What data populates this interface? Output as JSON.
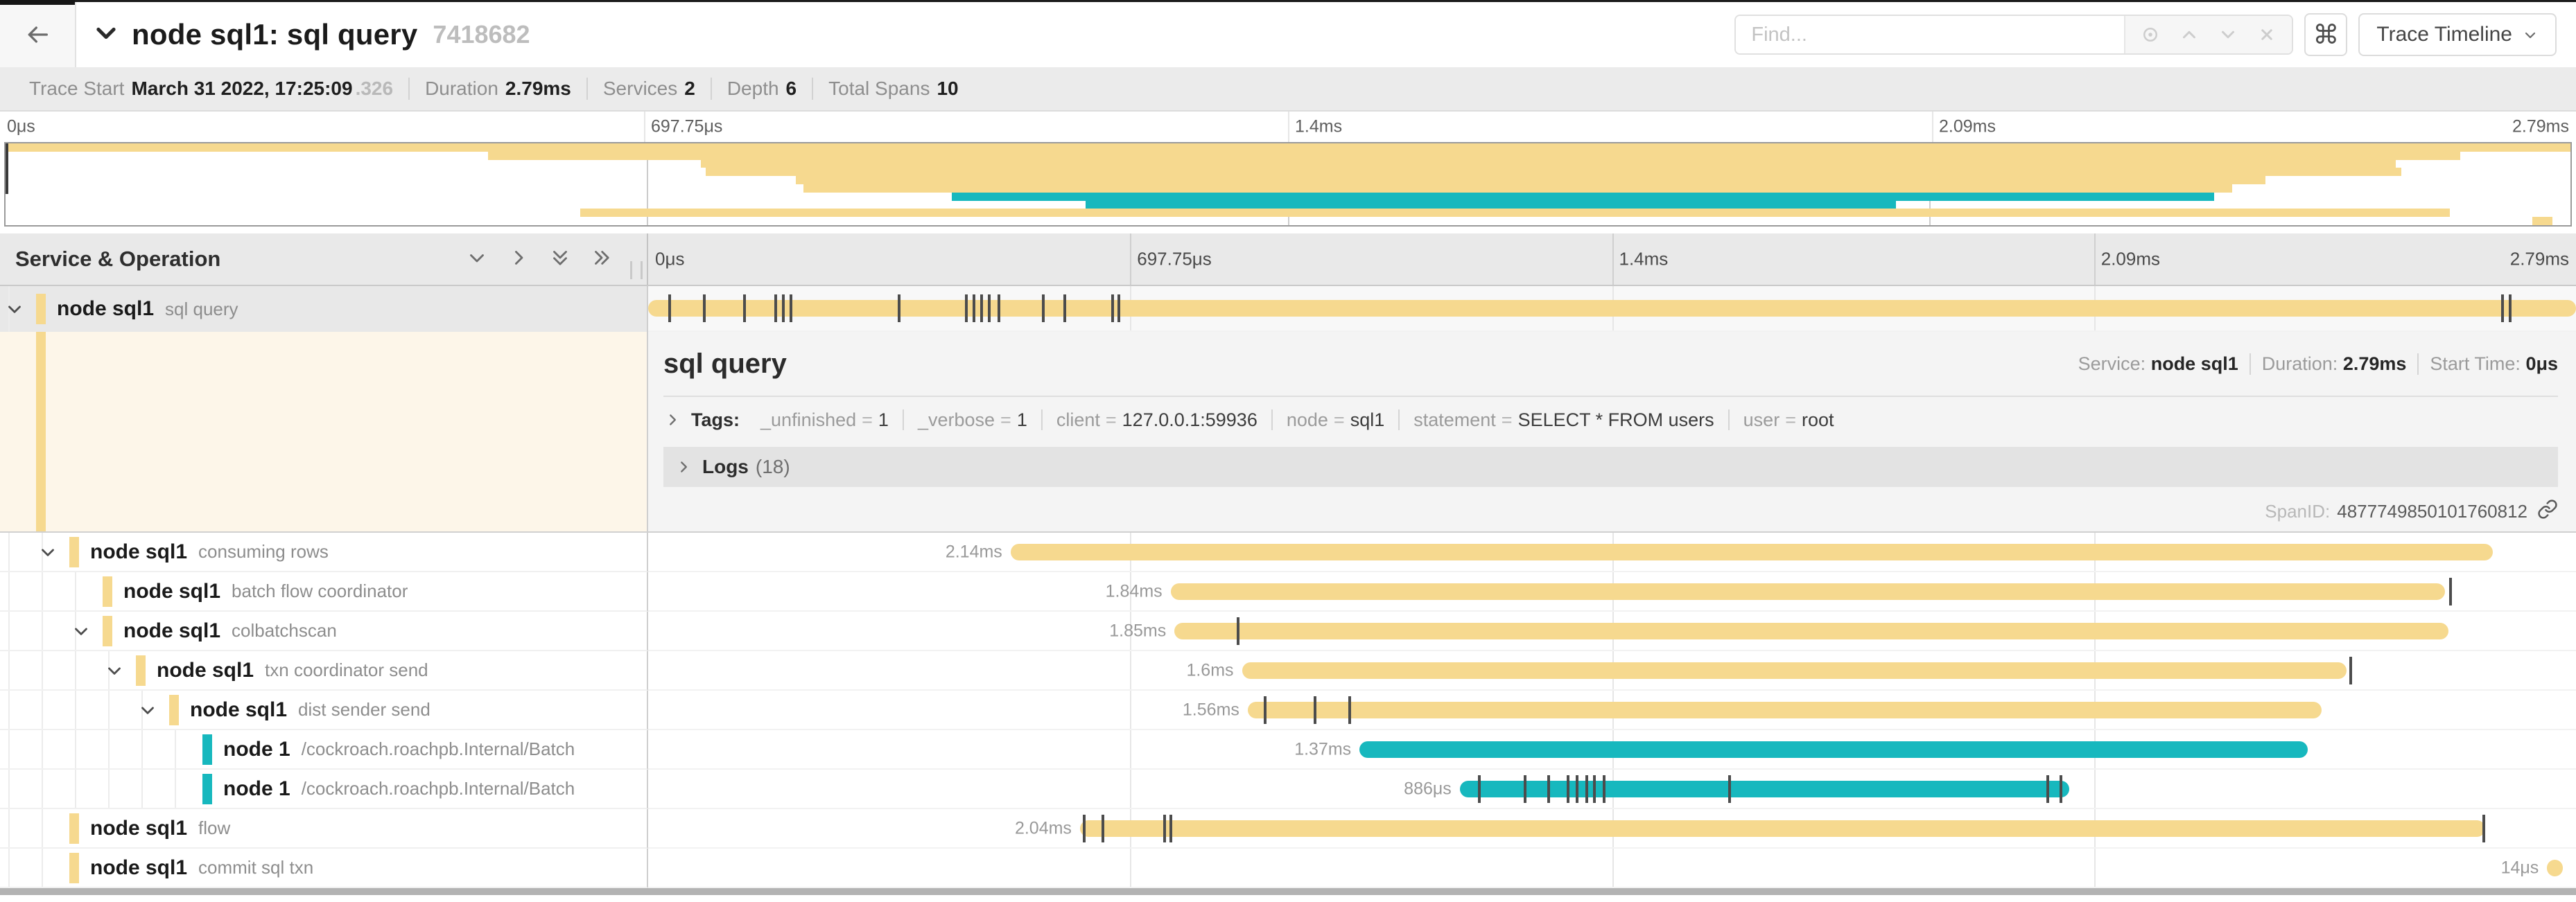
{
  "header": {
    "title": "node sql1: sql query",
    "trace_id": "7418682",
    "find_placeholder": "Find...",
    "shortcut_button": "⌘",
    "view_button": "Trace Timeline"
  },
  "stats": {
    "trace_start_label": "Trace Start",
    "trace_start": "March 31 2022, 17:25:09",
    "trace_start_frac": ".326",
    "duration_label": "Duration",
    "duration": "2.79ms",
    "services_label": "Services",
    "services": "2",
    "depth_label": "Depth",
    "depth": "6",
    "total_spans_label": "Total Spans",
    "total_spans": "10"
  },
  "colors": {
    "tan": "#F6D98F",
    "teal": "#17B8BE",
    "detail_bg": "#FDF6E9"
  },
  "timeline": {
    "left_header": "Service & Operation",
    "ticks": [
      {
        "label": "0μs",
        "pct": 0
      },
      {
        "label": "697.75μs",
        "pct": 25
      },
      {
        "label": "1.4ms",
        "pct": 50
      },
      {
        "label": "2.09ms",
        "pct": 75
      },
      {
        "label": "2.79ms",
        "pct": 100
      }
    ],
    "grid_pcts": [
      25,
      50,
      75
    ]
  },
  "minimap": {
    "spans": [
      {
        "start": 0,
        "end": 100,
        "color": "tan"
      },
      {
        "start": 18.8,
        "end": 95.7,
        "color": "tan"
      },
      {
        "start": 27.1,
        "end": 93.2,
        "color": "tan"
      },
      {
        "start": 27.3,
        "end": 93.4,
        "color": "tan"
      },
      {
        "start": 30.8,
        "end": 88.1,
        "color": "tan"
      },
      {
        "start": 31.1,
        "end": 86.8,
        "color": "tan"
      },
      {
        "start": 36.9,
        "end": 86.1,
        "color": "teal"
      },
      {
        "start": 42.1,
        "end": 73.7,
        "color": "teal"
      },
      {
        "start": 22.4,
        "end": 95.3,
        "color": "tan"
      },
      {
        "start": 98.5,
        "end": 99.3,
        "color": "tan"
      }
    ]
  },
  "spans": [
    {
      "service": "node sql1",
      "operation": "sql query",
      "depth": 0,
      "has_children": true,
      "color": "tan",
      "start_pct": 0,
      "width_pct": 100,
      "duration_label": "",
      "selected": true,
      "tick_pcts": [
        1.1,
        2.9,
        5.0,
        6.6,
        7.0,
        7.4,
        13.0,
        16.5,
        16.9,
        17.3,
        17.7,
        18.2,
        20.5,
        21.6,
        24.1,
        24.4,
        96.2,
        96.6
      ]
    },
    {
      "service": "node sql1",
      "operation": "consuming rows",
      "depth": 1,
      "has_children": true,
      "color": "tan",
      "start_pct": 18.8,
      "width_pct": 76.9,
      "duration_label": "2.14ms",
      "tick_pcts": []
    },
    {
      "service": "node sql1",
      "operation": "batch flow coordinator",
      "depth": 2,
      "has_children": false,
      "color": "tan",
      "start_pct": 27.1,
      "width_pct": 66.1,
      "duration_label": "1.84ms",
      "tick_pcts": [
        93.5
      ]
    },
    {
      "service": "node sql1",
      "operation": "colbatchscan",
      "depth": 2,
      "has_children": true,
      "color": "tan",
      "start_pct": 27.3,
      "width_pct": 66.1,
      "duration_label": "1.85ms",
      "tick_pcts": [
        30.6
      ]
    },
    {
      "service": "node sql1",
      "operation": "txn coordinator send",
      "depth": 3,
      "has_children": true,
      "color": "tan",
      "start_pct": 30.8,
      "width_pct": 57.3,
      "duration_label": "1.6ms",
      "tick_pcts": [
        88.3
      ]
    },
    {
      "service": "node sql1",
      "operation": "dist sender send",
      "depth": 4,
      "has_children": true,
      "color": "tan",
      "start_pct": 31.1,
      "width_pct": 55.7,
      "duration_label": "1.56ms",
      "tick_pcts": [
        32.0,
        34.6,
        36.4
      ]
    },
    {
      "service": "node 1",
      "operation": "/cockroach.roachpb.Internal/Batch",
      "depth": 5,
      "has_children": false,
      "color": "teal",
      "start_pct": 36.9,
      "width_pct": 49.2,
      "duration_label": "1.37ms",
      "tick_pcts": []
    },
    {
      "service": "node 1",
      "operation": "/cockroach.roachpb.Internal/Batch",
      "depth": 5,
      "has_children": false,
      "color": "teal",
      "start_pct": 42.1,
      "width_pct": 31.6,
      "duration_label": "886μs",
      "tick_pcts": [
        43.1,
        45.5,
        46.7,
        47.7,
        48.2,
        48.7,
        49.1,
        49.6,
        56.1,
        72.6,
        73.3
      ]
    },
    {
      "service": "node sql1",
      "operation": "flow",
      "depth": 1,
      "has_children": false,
      "color": "tan",
      "start_pct": 22.4,
      "width_pct": 72.9,
      "duration_label": "2.04ms",
      "tick_pcts": [
        22.6,
        23.6,
        26.8,
        27.1,
        95.2
      ]
    },
    {
      "service": "node sql1",
      "operation": "commit sql txn",
      "depth": 1,
      "has_children": false,
      "color": "tan",
      "start_pct": 98.5,
      "width_pct": 0.8,
      "duration_label": "14μs",
      "tick_pcts": []
    }
  ],
  "detail": {
    "title": "sql query",
    "service_label": "Service:",
    "service": "node sql1",
    "duration_label": "Duration:",
    "duration": "2.79ms",
    "start_time_label": "Start Time:",
    "start_time": "0μs",
    "tags_label": "Tags:",
    "tags": [
      {
        "key": "_unfinished",
        "value": "1"
      },
      {
        "key": "_verbose",
        "value": "1"
      },
      {
        "key": "client",
        "value": "127.0.0.1:59936"
      },
      {
        "key": "node",
        "value": "sql1"
      },
      {
        "key": "statement",
        "value": "SELECT * FROM users"
      },
      {
        "key": "user",
        "value": "root"
      }
    ],
    "logs_label": "Logs",
    "logs_count": "(18)",
    "span_id_label": "SpanID:",
    "span_id": "4877749850101760812"
  }
}
